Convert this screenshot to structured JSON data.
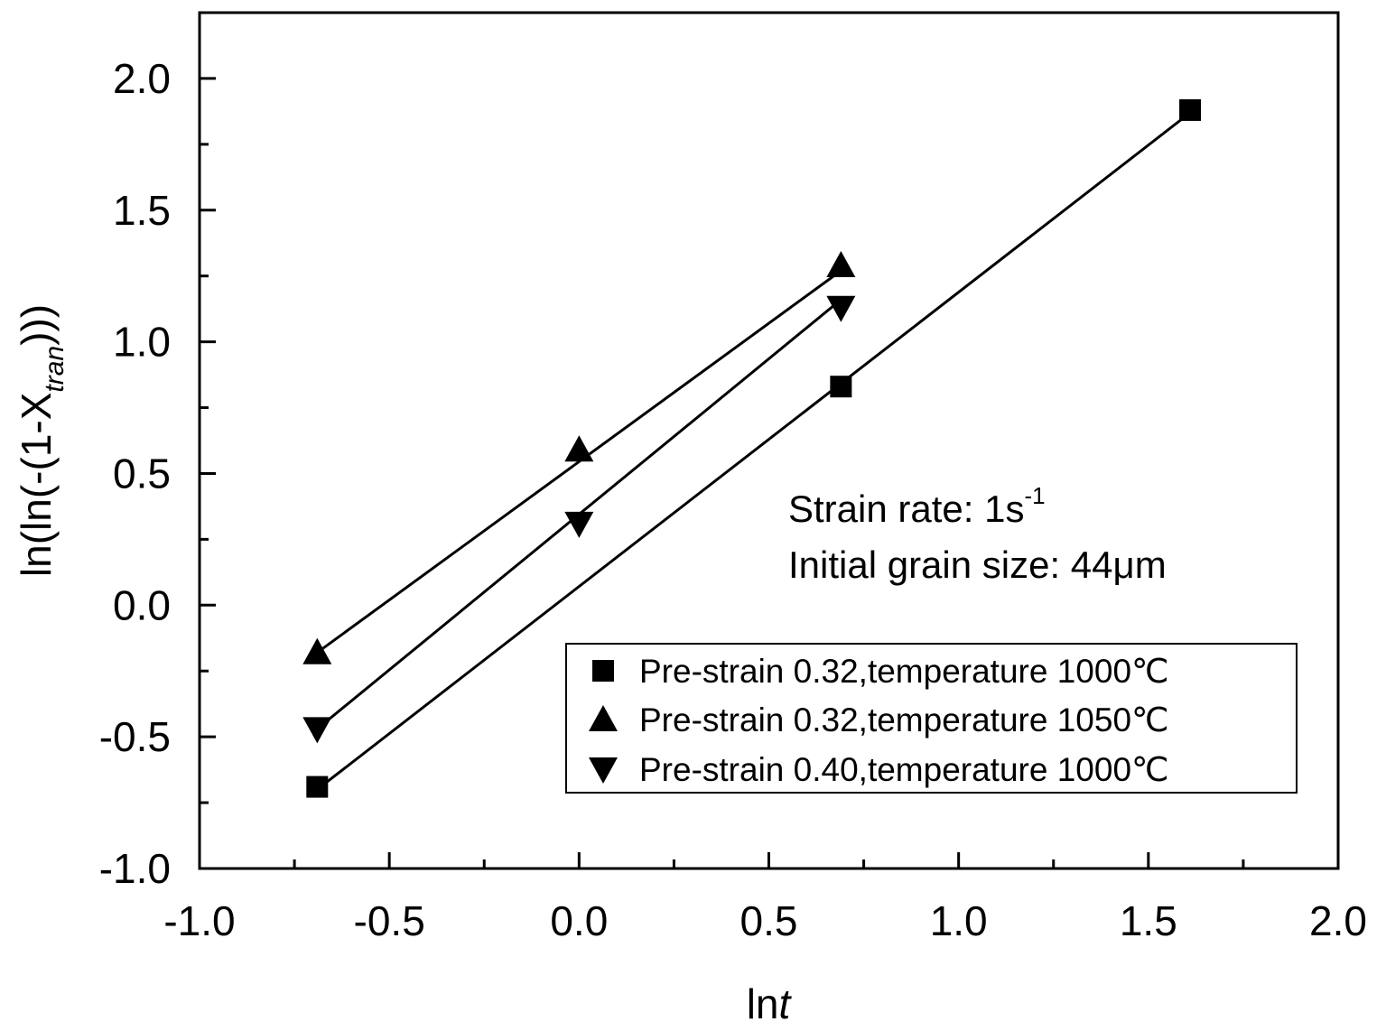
{
  "chart_data": {
    "type": "scatter",
    "xlabel_prefix": "ln",
    "xlabel_italic": "t",
    "ylabel_main": "ln(ln(-(1-X",
    "ylabel_sub": "tran",
    "ylabel_close": ")))",
    "xlim": [
      -1.0,
      2.0
    ],
    "ylim": [
      -1.0,
      2.25
    ],
    "x_ticks": [
      "-1.0",
      "-0.5",
      "0.0",
      "0.5",
      "1.0",
      "1.5",
      "2.0"
    ],
    "y_ticks": [
      "-1.0",
      "-0.5",
      "0.0",
      "0.5",
      "1.0",
      "1.5",
      "2.0"
    ],
    "grid": false,
    "legend_position": "bottom-right",
    "series": [
      {
        "name": "Pre-strain 0.32,temperature 1000℃",
        "marker": "square",
        "x": [
          -0.69,
          0.69,
          1.61
        ],
        "y": [
          -0.69,
          0.83,
          1.88
        ],
        "fit": [
          [
            -0.69,
            -0.7
          ],
          [
            1.61,
            1.87
          ]
        ]
      },
      {
        "name": "Pre-strain 0.32,temperature 1050℃",
        "marker": "triangle-up",
        "x": [
          -0.69,
          0.0,
          0.69
        ],
        "y": [
          -0.18,
          0.59,
          1.29
        ],
        "fit": [
          [
            -0.69,
            -0.18
          ],
          [
            0.69,
            1.27
          ]
        ]
      },
      {
        "name": "Pre-strain 0.40,temperature 1000℃",
        "marker": "triangle-down",
        "x": [
          -0.69,
          0.0,
          0.69
        ],
        "y": [
          -0.47,
          0.31,
          1.13
        ],
        "fit": [
          [
            -0.69,
            -0.47
          ],
          [
            0.69,
            1.16
          ]
        ]
      }
    ],
    "annotations": {
      "strain_rate_text": "Strain rate: 1s",
      "strain_rate_sup": "-1",
      "grain_size_text": "Initial grain size: 44μm"
    }
  }
}
